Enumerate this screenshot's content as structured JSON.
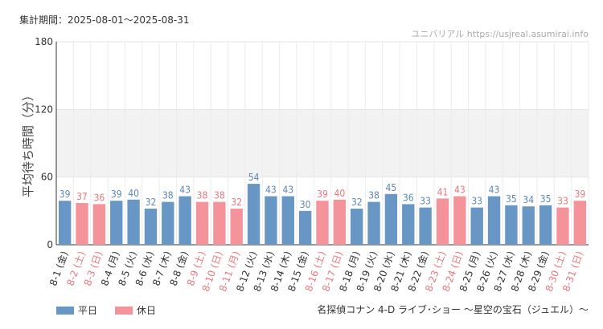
{
  "header": {
    "period_label": "集計期間：2025-08-01～2025-08-31",
    "source": "ユニバリアル https://usjreal.asumirai.info"
  },
  "footer": {
    "attraction_name": "名探偵コナン 4-D ライブ･ショー ～星空の宝石（ジュエル）～"
  },
  "colors": {
    "weekday": "#6897c6",
    "holiday": "#f5939a",
    "holiday_label": "#e9777f",
    "weekday_label": "#333333",
    "value_weekday": "#5d88b8"
  },
  "chart_data": {
    "type": "bar",
    "ylabel": "平均待ち時間（分）",
    "ylim": [
      0,
      180
    ],
    "yticks": [
      0,
      60,
      120,
      180
    ],
    "categories": [
      "8-1 (金)",
      "8-2 (土)",
      "8-3 (日)",
      "8-4 (月)",
      "8-5 (火)",
      "8-6 (水)",
      "8-7 (木)",
      "8-8 (金)",
      "8-9 (土)",
      "8-10 (日)",
      "8-11 (月)",
      "8-12 (火)",
      "8-13 (水)",
      "8-14 (木)",
      "8-15 (金)",
      "8-16 (土)",
      "8-17 (日)",
      "8-18 (月)",
      "8-19 (火)",
      "8-20 (水)",
      "8-21 (木)",
      "8-22 (金)",
      "8-23 (土)",
      "8-24 (日)",
      "8-25 (月)",
      "8-26 (火)",
      "8-27 (水)",
      "8-28 (木)",
      "8-29 (金)",
      "8-30 (土)",
      "8-31 (日)"
    ],
    "values": [
      39,
      37,
      36,
      39,
      40,
      32,
      38,
      43,
      38,
      38,
      32,
      54,
      43,
      43,
      30,
      39,
      40,
      32,
      38,
      45,
      36,
      33,
      41,
      43,
      33,
      43,
      35,
      34,
      35,
      33,
      39
    ],
    "holiday": [
      false,
      true,
      true,
      false,
      false,
      false,
      false,
      false,
      true,
      true,
      true,
      false,
      false,
      false,
      false,
      true,
      true,
      false,
      false,
      false,
      false,
      false,
      true,
      true,
      false,
      false,
      false,
      false,
      false,
      true,
      true
    ],
    "legend": [
      {
        "name": "平日",
        "key": "weekday"
      },
      {
        "name": "休日",
        "key": "holiday"
      }
    ],
    "shaded_band": [
      60,
      120
    ]
  }
}
